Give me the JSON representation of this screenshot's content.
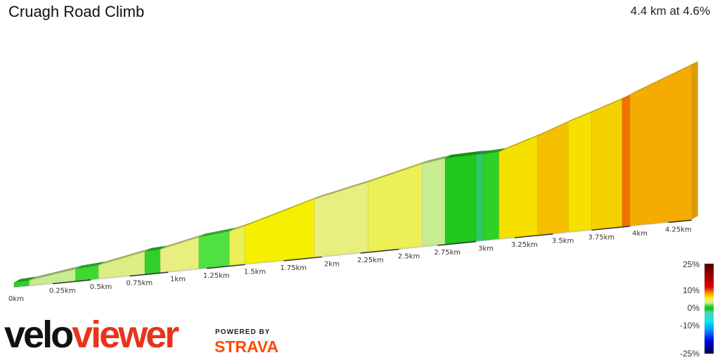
{
  "header": {
    "title": "Cruagh Road Climb",
    "summary": "4.4 km at 4.6%"
  },
  "chart_data": {
    "type": "area",
    "title": "Cruagh Road Climb",
    "distance_km": 4.4,
    "average_gradient_pct": 4.6,
    "x_ticks": [
      "0km",
      "0.25km",
      "0.5km",
      "0.75km",
      "1km",
      "1.25km",
      "1.5km",
      "1.75km",
      "2km",
      "2.25km",
      "2.5km",
      "2.75km",
      "3km",
      "3.25km",
      "3.5km",
      "3.75km",
      "4km",
      "4.25km"
    ],
    "x_tick_values": [
      0,
      0.25,
      0.5,
      0.75,
      1,
      1.25,
      1.5,
      1.75,
      2,
      2.25,
      2.5,
      2.75,
      3,
      3.25,
      3.5,
      3.75,
      4,
      4.25
    ],
    "segments": [
      {
        "start_km": 0,
        "end_km": 0.1,
        "gradient_pct": 1
      },
      {
        "start_km": 0.1,
        "end_km": 0.4,
        "gradient_pct": 3
      },
      {
        "start_km": 0.4,
        "end_km": 0.55,
        "gradient_pct": 1.5
      },
      {
        "start_km": 0.55,
        "end_km": 0.85,
        "gradient_pct": 4
      },
      {
        "start_km": 0.85,
        "end_km": 0.95,
        "gradient_pct": 1
      },
      {
        "start_km": 0.95,
        "end_km": 1.2,
        "gradient_pct": 4.5
      },
      {
        "start_km": 1.2,
        "end_km": 1.4,
        "gradient_pct": 2
      },
      {
        "start_km": 1.4,
        "end_km": 1.5,
        "gradient_pct": 5
      },
      {
        "start_km": 1.5,
        "end_km": 1.95,
        "gradient_pct": 6
      },
      {
        "start_km": 1.95,
        "end_km": 2.3,
        "gradient_pct": 4.5
      },
      {
        "start_km": 2.3,
        "end_km": 2.65,
        "gradient_pct": 5
      },
      {
        "start_km": 2.65,
        "end_km": 2.8,
        "gradient_pct": 3
      },
      {
        "start_km": 2.8,
        "end_km": 3.0,
        "gradient_pct": 0.5
      },
      {
        "start_km": 3.0,
        "end_km": 3.05,
        "gradient_pct": -1
      },
      {
        "start_km": 3.05,
        "end_km": 3.15,
        "gradient_pct": 1
      },
      {
        "start_km": 3.15,
        "end_km": 3.4,
        "gradient_pct": 6.5
      },
      {
        "start_km": 3.4,
        "end_km": 3.6,
        "gradient_pct": 7.5
      },
      {
        "start_km": 3.6,
        "end_km": 3.75,
        "gradient_pct": 6.5
      },
      {
        "start_km": 3.75,
        "end_km": 3.95,
        "gradient_pct": 7
      },
      {
        "start_km": 3.95,
        "end_km": 4.0,
        "gradient_pct": 9.5
      },
      {
        "start_km": 4.0,
        "end_km": 4.4,
        "gradient_pct": 8
      }
    ],
    "legend": {
      "labels": [
        "25%",
        "10%",
        "0%",
        "-10%",
        "-25%"
      ],
      "values": [
        25,
        10,
        0,
        -10,
        -25
      ]
    },
    "color_scale": [
      [
        -25,
        "#00004a"
      ],
      [
        -18,
        "#0000e0"
      ],
      [
        -12,
        "#0090ff"
      ],
      [
        -7,
        "#10e8e8"
      ],
      [
        -2,
        "#50d0b0"
      ],
      [
        0,
        "#10c010"
      ],
      [
        2,
        "#50e040"
      ],
      [
        3,
        "#c8ec90"
      ],
      [
        4.5,
        "#e8ee80"
      ],
      [
        6,
        "#f5f000"
      ],
      [
        7.5,
        "#f5c000"
      ],
      [
        9.5,
        "#f07000"
      ],
      [
        12,
        "#e00000"
      ],
      [
        25,
        "#500000"
      ]
    ]
  },
  "branding": {
    "logo_part1": "velo",
    "logo_part2": "viewer",
    "powered_by": "POWERED BY",
    "strava": "STRAVA"
  }
}
